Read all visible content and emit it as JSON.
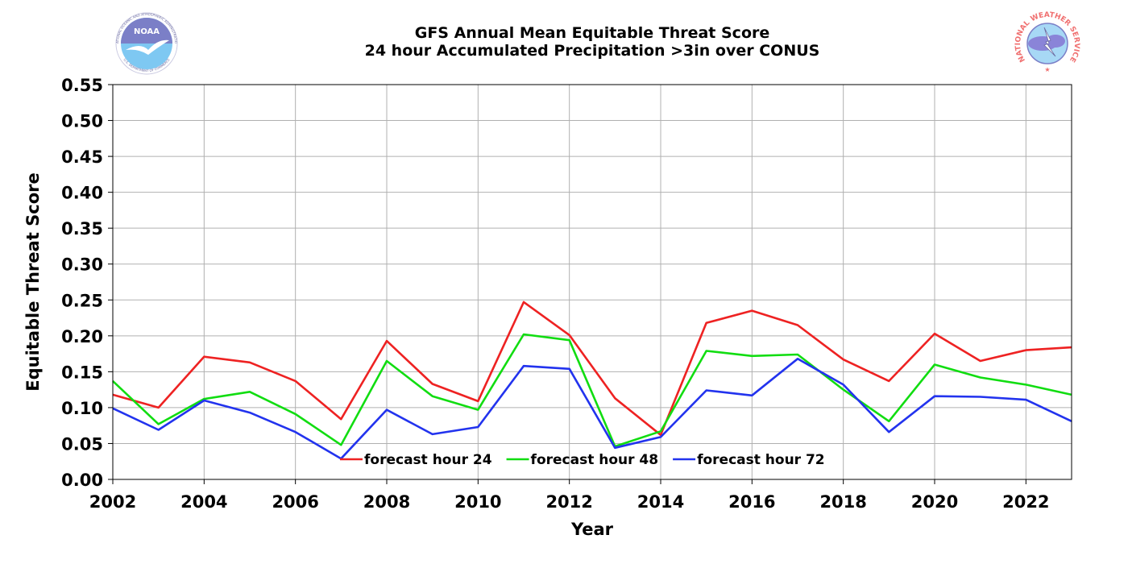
{
  "logos": {
    "left": "NOAA",
    "left_ring": "NATIONAL OCEANIC AND ATMOSPHERIC ADMINISTRATION",
    "left_bottom": "U.S. DEPARTMENT OF COMMERCE",
    "right_ring": "NATIONAL WEATHER SERVICE"
  },
  "colors": {
    "forecast_24": "#ee2222",
    "forecast_48": "#11dd11",
    "forecast_72": "#2233ee",
    "grid": "#b0b0b0"
  },
  "chart_data": {
    "type": "line",
    "title": "GFS Annual Mean Equitable Threat Score",
    "subtitle": "24 hour Accumulated Precipitation >3in over CONUS",
    "xlabel": "Year",
    "ylabel": "Equitable Threat Score",
    "xlim": [
      2002,
      2023
    ],
    "ylim": [
      0.0,
      0.55
    ],
    "grid": true,
    "legend_position": "lower-center",
    "x_ticks": [
      "2002",
      "2004",
      "2006",
      "2008",
      "2010",
      "2012",
      "2014",
      "2016",
      "2018",
      "2020",
      "2022"
    ],
    "y_ticks": [
      "0.00",
      "0.05",
      "0.10",
      "0.15",
      "0.20",
      "0.25",
      "0.30",
      "0.35",
      "0.40",
      "0.45",
      "0.50",
      "0.55"
    ],
    "x": [
      2002,
      2003,
      2004,
      2005,
      2006,
      2007,
      2008,
      2009,
      2010,
      2011,
      2012,
      2013,
      2014,
      2015,
      2016,
      2017,
      2018,
      2019,
      2020,
      2021,
      2022,
      2023
    ],
    "series": [
      {
        "name": "forecast hour 24",
        "values": [
          0.118,
          0.1,
          0.171,
          0.163,
          0.137,
          0.084,
          0.193,
          0.133,
          0.109,
          0.247,
          0.201,
          0.113,
          0.062,
          0.218,
          0.235,
          0.215,
          0.167,
          0.137,
          0.203,
          0.165,
          0.18,
          0.184
        ]
      },
      {
        "name": "forecast hour 48",
        "values": [
          0.137,
          0.077,
          0.112,
          0.122,
          0.091,
          0.048,
          0.165,
          0.116,
          0.097,
          0.202,
          0.194,
          0.046,
          0.067,
          0.179,
          0.172,
          0.174,
          0.125,
          0.081,
          0.16,
          0.142,
          0.132,
          0.118
        ]
      },
      {
        "name": "forecast hour 72",
        "values": [
          0.099,
          0.069,
          0.11,
          0.093,
          0.066,
          0.029,
          0.097,
          0.063,
          0.073,
          0.158,
          0.154,
          0.044,
          0.059,
          0.124,
          0.117,
          0.168,
          0.132,
          0.066,
          0.116,
          0.115,
          0.111,
          0.081
        ]
      }
    ]
  }
}
